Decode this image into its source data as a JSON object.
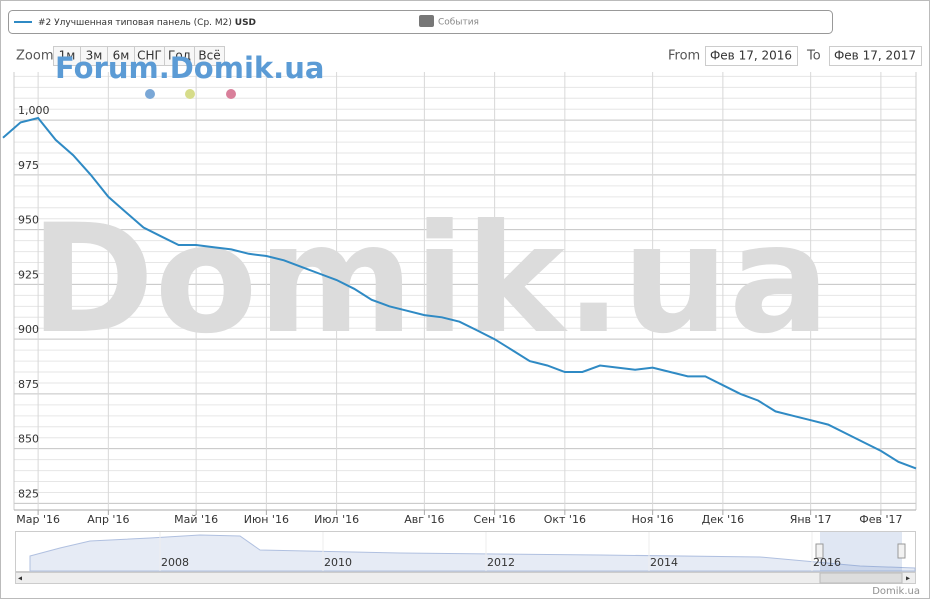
{
  "chart_data": {
    "type": "line",
    "series": [
      {
        "name": "#2 Улучшенная типовая панель (Ср. М2)",
        "unit": "USD",
        "color": "#2f8ac4",
        "values": [
          992,
          999,
          1001,
          991,
          984,
          975,
          965,
          958,
          951,
          947,
          943,
          943,
          942,
          941,
          939,
          938,
          936,
          933,
          930,
          927,
          923,
          918,
          915,
          913,
          911,
          910,
          908,
          904,
          900,
          895,
          890,
          888,
          885,
          885,
          888,
          887,
          886,
          887,
          885,
          883,
          883,
          879,
          875,
          872,
          867,
          865,
          863,
          861,
          857,
          853,
          849,
          844,
          841
        ]
      }
    ],
    "categories": [
      null,
      null,
      "Мар '16",
      null,
      null,
      null,
      "Апр '16",
      null,
      null,
      null,
      null,
      "Май '16",
      null,
      null,
      null,
      "Июн '16",
      null,
      null,
      null,
      "Июл '16",
      null,
      null,
      null,
      null,
      "Авг '16",
      null,
      null,
      null,
      "Сен '16",
      null,
      null,
      null,
      "Окт '16",
      null,
      null,
      null,
      null,
      "Ноя '16",
      null,
      null,
      null,
      "Дек '16",
      null,
      null,
      null,
      null,
      "Янв '17",
      null,
      null,
      null,
      "Фев '17",
      null,
      null
    ],
    "ylim": [
      822,
      1022
    ],
    "yticks": [
      825,
      850,
      875,
      900,
      925,
      950,
      975,
      {
        "value": 1000,
        "label": "1,000"
      }
    ],
    "grid": true,
    "minor_grid_step": 5
  },
  "ui": {
    "events_label": "События",
    "zoom_label": "Zoom",
    "zoom_buttons": [
      "1м",
      "3м",
      "6м",
      "СНГ",
      "Год",
      "Всё"
    ],
    "from_label": "From",
    "from_date": "Фев 17, 2016",
    "to_label": "To",
    "to_date": "Фев 17, 2017",
    "watermark_small": "Forum.Domik.ua",
    "watermark_big": "Domik.ua",
    "navigator_years": [
      "2008",
      "2010",
      "2012",
      "2014",
      "2016"
    ],
    "credits": "Domik.ua"
  }
}
